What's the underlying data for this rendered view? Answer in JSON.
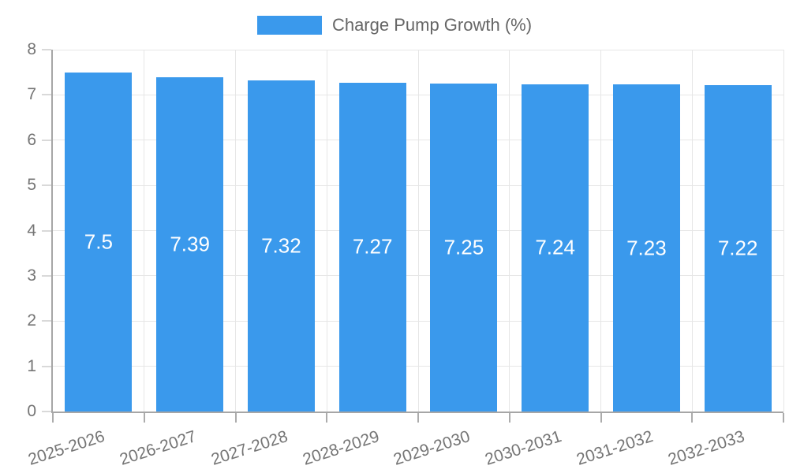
{
  "legend": {
    "label": "Charge Pump Growth (%)"
  },
  "colors": {
    "bar": "#3A99EC",
    "grid": "#E6E6E6",
    "axis_border": "#A6A6A6",
    "y_tick": "#D9D9D9",
    "x_tick": "#ACACAC",
    "axis_label_text": "#757575",
    "legend_text": "#666666",
    "data_label_text": "#FFFFFF",
    "background": "#FFFFFF"
  },
  "chart_data": {
    "type": "bar",
    "title": "Charge Pump Growth (%)",
    "categories": [
      "2025-2026",
      "2026-2027",
      "2027-2028",
      "2028-2029",
      "2029-2030",
      "2030-2031",
      "2031-2032",
      "2032-2033"
    ],
    "values": [
      7.5,
      7.39,
      7.32,
      7.27,
      7.25,
      7.24,
      7.23,
      7.22
    ],
    "data_labels": [
      "7.5",
      "7.39",
      "7.32",
      "7.27",
      "7.25",
      "7.24",
      "7.23",
      "7.22"
    ],
    "xlabel": "",
    "ylabel": "",
    "ylim": [
      0,
      8
    ],
    "yticks": [
      0,
      1,
      2,
      3,
      4,
      5,
      6,
      7,
      8
    ],
    "grid": true,
    "legend_position": "top",
    "x_tick_rotation_deg": -18
  }
}
